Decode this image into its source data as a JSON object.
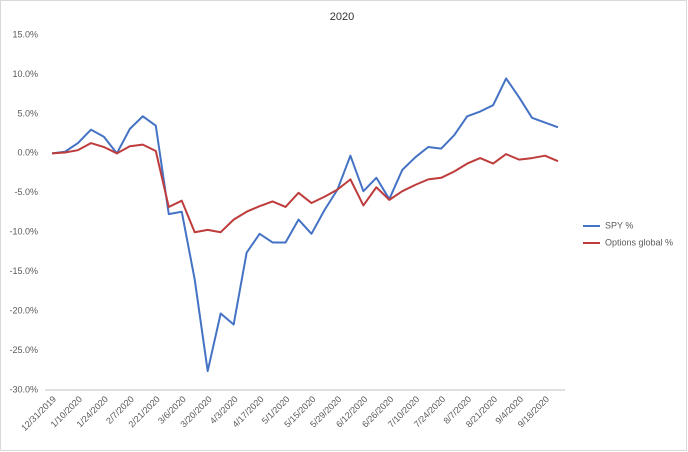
{
  "chart_data": {
    "type": "line",
    "title": "2020",
    "categories": [
      "12/31/2019",
      null,
      "1/10/2020",
      null,
      "1/24/2020",
      null,
      "2/7/2020",
      null,
      "2/21/2020",
      null,
      "3/6/2020",
      null,
      "3/20/2020",
      null,
      "4/3/2020",
      null,
      "4/17/2020",
      null,
      "5/1/2020",
      null,
      "5/15/2020",
      null,
      "5/29/2020",
      null,
      "6/12/2020",
      null,
      "6/26/2020",
      null,
      "7/10/2020",
      null,
      "7/24/2020",
      null,
      "8/7/2020",
      null,
      "8/21/2020",
      null,
      "9/4/2020",
      null,
      "9/18/2020",
      null
    ],
    "series": [
      {
        "name": "SPY %",
        "color": "#4472c4",
        "values": [
          0,
          0.2,
          1.3,
          3.0,
          2.1,
          0.0,
          3.1,
          4.7,
          3.5,
          -7.7,
          -7.4,
          -16,
          -27.6,
          -20.3,
          -21.7,
          -12.6,
          -10.2,
          -11.3,
          -11.3,
          -8.4,
          -10.2,
          -7.2,
          -4.6,
          -0.3,
          -4.8,
          -3.1,
          -5.8,
          -2.1,
          -0.5,
          0.8,
          0.6,
          2.3,
          4.7,
          5.3,
          6.1,
          9.5,
          7.1,
          4.5,
          3.9,
          3.3
        ]
      },
      {
        "name": "Options global %",
        "color": "#be3c3c",
        "values": [
          0,
          0.1,
          0.4,
          1.3,
          0.8,
          0.0,
          0.9,
          1.1,
          0.3,
          -6.8,
          -6.0,
          -10.0,
          -9.7,
          -10.0,
          -8.4,
          -7.4,
          -6.7,
          -6.1,
          -6.8,
          -5.0,
          -6.3,
          -5.5,
          -4.6,
          -3.3,
          -6.6,
          -4.3,
          -5.9,
          -4.8,
          -4.0,
          -3.3,
          -3.1,
          -2.3,
          -1.3,
          -0.6,
          -1.3,
          -0.1,
          -0.8,
          -0.6,
          -0.3,
          -1.0
        ]
      }
    ],
    "ylim": [
      -30,
      15
    ],
    "yticks": [
      {
        "value": -30,
        "label": "-30.0%"
      },
      {
        "value": -25,
        "label": "-25.0%"
      },
      {
        "value": -20,
        "label": "-20.0%"
      },
      {
        "value": -15,
        "label": "-15.0%"
      },
      {
        "value": -10,
        "label": "-10.0%"
      },
      {
        "value": -5,
        "label": "-5.0%"
      },
      {
        "value": 0,
        "label": "0.0%"
      },
      {
        "value": 5,
        "label": "5.0%"
      },
      {
        "value": 10,
        "label": "10.0%"
      },
      {
        "value": 15,
        "label": "15.0%"
      }
    ],
    "grid": false,
    "legend": "right"
  }
}
